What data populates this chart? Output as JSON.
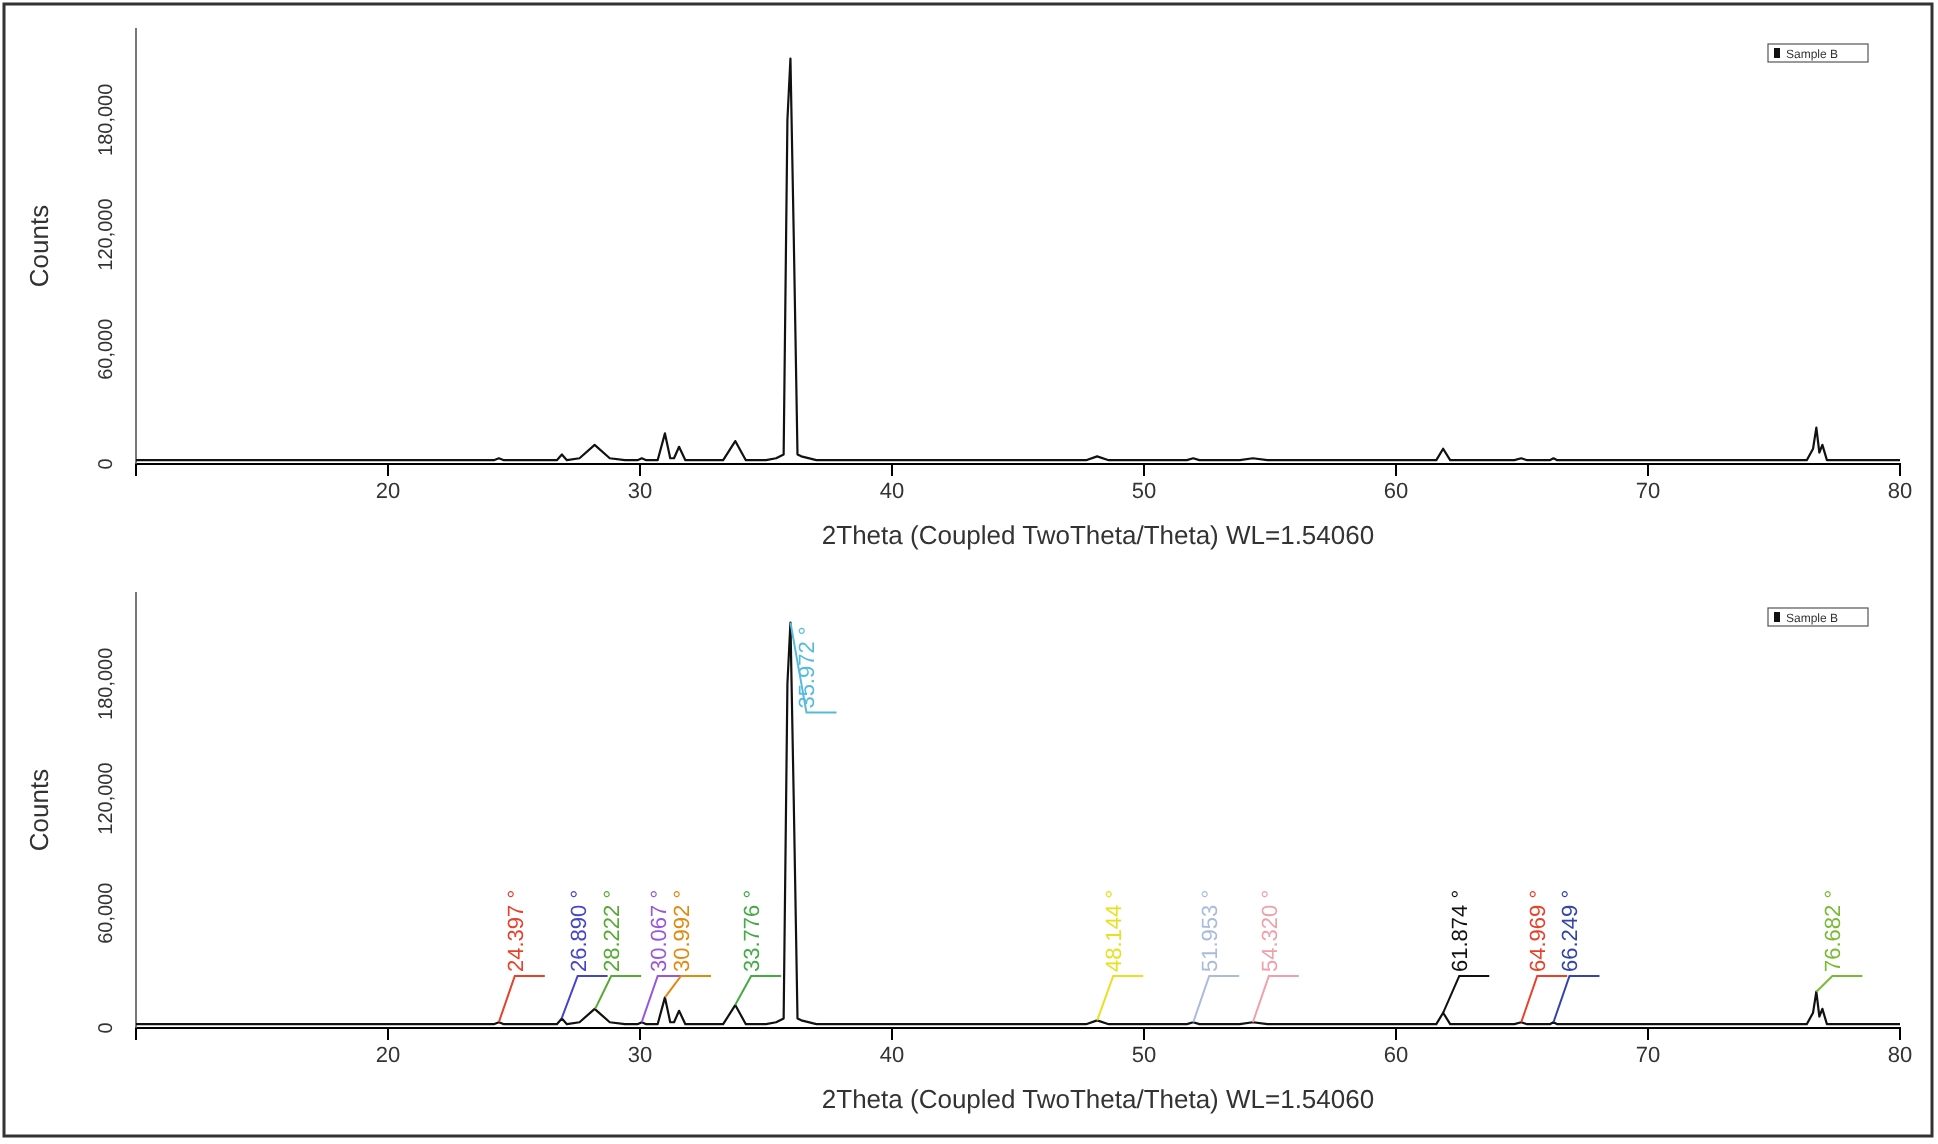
{
  "chart_data": [
    {
      "type": "line",
      "xlabel": "2Theta (Coupled TwoTheta/Theta) WL=1.54060",
      "ylabel": "Counts",
      "x": [
        10,
        12,
        14,
        16,
        18,
        20,
        22,
        23.5,
        24.2,
        24.4,
        24.6,
        26,
        26.7,
        26.9,
        27.1,
        27.6,
        28.2,
        28.8,
        29.4,
        29.9,
        30.07,
        30.25,
        30.7,
        30.99,
        31.2,
        31.35,
        31.55,
        31.8,
        33.3,
        33.78,
        34.2,
        35,
        35.4,
        35.7,
        35.85,
        35.97,
        36.1,
        36.25,
        36.4,
        37,
        40,
        44,
        47.7,
        48.14,
        48.6,
        51.7,
        51.95,
        52.2,
        53.8,
        54.32,
        54.9,
        58,
        61.6,
        61.87,
        62.15,
        64.7,
        64.97,
        65.2,
        66.1,
        66.25,
        66.4,
        70,
        76.3,
        76.55,
        76.68,
        76.8,
        76.92,
        77.1,
        77.5,
        80
      ],
      "series": [
        {
          "name": "Sample B",
          "color": "#111111",
          "values": [
            2000,
            2000,
            2000,
            2000,
            2000,
            2000,
            2000,
            2000,
            2000,
            3000,
            2000,
            2000,
            2000,
            5000,
            2000,
            3000,
            10000,
            3000,
            2000,
            2000,
            3000,
            2000,
            2000,
            16000,
            3000,
            3000,
            9000,
            2000,
            2000,
            12000,
            2000,
            2000,
            3000,
            5000,
            180000,
            212000,
            120000,
            5000,
            4000,
            2000,
            2000,
            2000,
            2000,
            4000,
            2000,
            2000,
            3000,
            2000,
            2000,
            3000,
            2000,
            2000,
            2000,
            8000,
            2000,
            2000,
            3000,
            2000,
            2000,
            3000,
            2000,
            2000,
            2000,
            8000,
            19000,
            6000,
            10000,
            2000,
            2000,
            2000
          ]
        }
      ],
      "xlim": [
        10,
        80
      ],
      "xticks": [
        20,
        30,
        40,
        50,
        60,
        70,
        80
      ],
      "ylim": [
        0,
        228000
      ],
      "yticks": [
        {
          "value": 0,
          "label": "0"
        },
        {
          "value": 60000,
          "label": "60,000"
        },
        {
          "value": 120000,
          "label": "120,000"
        },
        {
          "value": 180000,
          "label": "180,000"
        }
      ],
      "legend": "top right",
      "grid": false
    },
    {
      "type": "line",
      "xlabel": "2Theta (Coupled TwoTheta/Theta) WL=1.54060",
      "ylabel": "Counts",
      "x": [
        10,
        12,
        14,
        16,
        18,
        20,
        22,
        23.5,
        24.2,
        24.4,
        24.6,
        26,
        26.7,
        26.9,
        27.1,
        27.6,
        28.2,
        28.8,
        29.4,
        29.9,
        30.07,
        30.25,
        30.7,
        30.99,
        31.2,
        31.35,
        31.55,
        31.8,
        33.3,
        33.78,
        34.2,
        35,
        35.4,
        35.7,
        35.85,
        35.97,
        36.1,
        36.25,
        36.4,
        37,
        40,
        44,
        47.7,
        48.14,
        48.6,
        51.7,
        51.95,
        52.2,
        53.8,
        54.32,
        54.9,
        58,
        61.6,
        61.87,
        62.15,
        64.7,
        64.97,
        65.2,
        66.1,
        66.25,
        66.4,
        70,
        76.3,
        76.55,
        76.68,
        76.8,
        76.92,
        77.1,
        77.5,
        80
      ],
      "series": [
        {
          "name": "Sample B",
          "color": "#111111",
          "values": [
            2000,
            2000,
            2000,
            2000,
            2000,
            2000,
            2000,
            2000,
            2000,
            3000,
            2000,
            2000,
            2000,
            5000,
            2000,
            3000,
            10000,
            3000,
            2000,
            2000,
            3000,
            2000,
            2000,
            16000,
            3000,
            3000,
            9000,
            2000,
            2000,
            12000,
            2000,
            2000,
            3000,
            5000,
            180000,
            212000,
            120000,
            5000,
            4000,
            2000,
            2000,
            2000,
            2000,
            4000,
            2000,
            2000,
            3000,
            2000,
            2000,
            3000,
            2000,
            2000,
            2000,
            8000,
            2000,
            2000,
            3000,
            2000,
            2000,
            3000,
            2000,
            2000,
            2000,
            8000,
            19000,
            6000,
            10000,
            2000,
            2000,
            2000
          ]
        }
      ],
      "xlim": [
        10,
        80
      ],
      "xticks": [
        20,
        30,
        40,
        50,
        60,
        70,
        80
      ],
      "ylim": [
        0,
        228000
      ],
      "yticks": [
        {
          "value": 0,
          "label": "0"
        },
        {
          "value": 60000,
          "label": "60,000"
        },
        {
          "value": 120000,
          "label": "120,000"
        },
        {
          "value": 180000,
          "label": "180,000"
        }
      ],
      "legend": "top right",
      "grid": false,
      "annotations": [
        {
          "text": "24.397 °",
          "x": 24.397,
          "y": 3000
        },
        {
          "text": "26.890 °",
          "x": 26.89,
          "y": 5000
        },
        {
          "text": "28.222 °",
          "x": 28.222,
          "y": 10000
        },
        {
          "text": "30.067 °",
          "x": 30.067,
          "y": 3000
        },
        {
          "text": "30.992 °",
          "x": 30.992,
          "y": 16000
        },
        {
          "text": "33.776 °",
          "x": 33.776,
          "y": 12000
        },
        {
          "text": "35.972 °",
          "x": 35.972,
          "y": 212000
        },
        {
          "text": "48.144 °",
          "x": 48.144,
          "y": 4000
        },
        {
          "text": "51.953 °",
          "x": 51.953,
          "y": 3000
        },
        {
          "text": "54.320 °",
          "x": 54.32,
          "y": 3000
        },
        {
          "text": "61.874 °",
          "x": 61.874,
          "y": 8000
        },
        {
          "text": "64.969 °",
          "x": 64.969,
          "y": 3000
        },
        {
          "text": "66.249 °",
          "x": 66.249,
          "y": 3000
        },
        {
          "text": "76.682 °",
          "x": 76.682,
          "y": 19000
        }
      ]
    }
  ]
}
